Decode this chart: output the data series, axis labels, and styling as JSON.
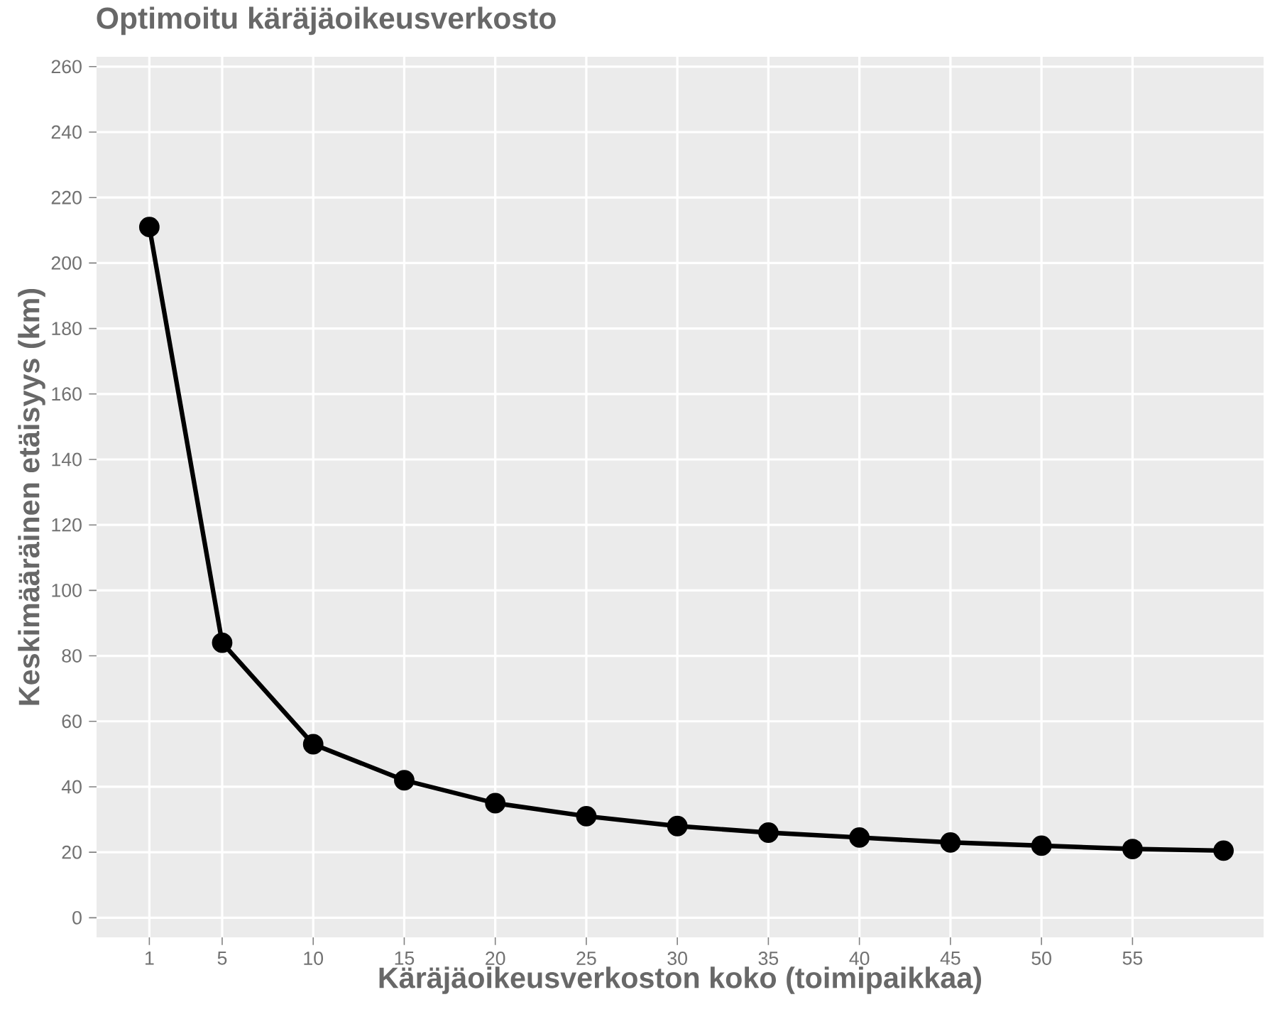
{
  "chart_data": {
    "type": "line",
    "title": "Optimoitu käräjäoikeusverkosto",
    "xlabel": "Käräjäoikeusverkoston koko (toimipaikkaa)",
    "ylabel": "Keskimääräinen etäisyys (km)",
    "x": [
      1,
      5,
      10,
      15,
      20,
      25,
      30,
      35,
      40,
      45,
      50,
      55,
      60
    ],
    "series": [
      {
        "color": "#000000",
        "values": [
          211,
          84,
          53,
          42,
          35,
          31,
          28,
          26,
          24.5,
          23,
          22,
          21,
          20.5
        ]
      }
    ],
    "xlim": [
      -1.9,
      62.2
    ],
    "ylim": [
      -6,
      263
    ],
    "xticks": [
      1,
      5,
      10,
      15,
      20,
      25,
      30,
      35,
      40,
      45,
      50,
      55
    ],
    "yticks": [
      0,
      20,
      40,
      60,
      80,
      100,
      120,
      140,
      160,
      180,
      200,
      220,
      240,
      260
    ],
    "grid": true,
    "marker": "circle",
    "line_style": "solid"
  }
}
